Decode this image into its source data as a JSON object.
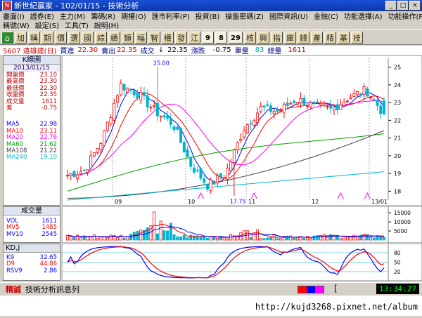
{
  "window": {
    "title": "新世紀贏家 - 102/01/15 - 技術分析"
  },
  "menu1": [
    "畫面(I)",
    "證券(E)",
    "主力(M)",
    "籌碼(R)",
    "期權(O)",
    "匯市利率(P)",
    "投資(B)",
    "操盤密碼(Z)",
    "國際資訊(U)",
    "金融(C)",
    "功能選擇(A)",
    "功能操作(F)"
  ],
  "menu2": [
    "稱號(W)",
    "設定(S)",
    "工具(T)",
    "說明(H)"
  ],
  "toolbar": [
    "加",
    "稱",
    "期",
    "價",
    "選",
    "國",
    "綜",
    "績",
    "類",
    "幅",
    "智",
    "權",
    "發",
    "江",
    "9",
    "8",
    "29",
    "核",
    "興",
    "指",
    "庫",
    "錢",
    "產",
    "精",
    "基",
    "技"
  ],
  "quote": {
    "stock": "5607 遠雄建(日)",
    "bid_label": "買進",
    "bid": "22.30",
    "ask_label": "賣出",
    "ask": "22.35",
    "trade_label": "成交",
    "trade_arrow": "↓",
    "trade": "22.35",
    "change_label": "漲跌",
    "change": "-0.75",
    "single_label": "單量",
    "single": "83",
    "total_label": "總量",
    "total": "1611"
  },
  "info": {
    "header": "K線圖",
    "date": "2013/01/15",
    "fields": [
      {
        "label": "開盤價",
        "value": "23.10",
        "color": "#c00000"
      },
      {
        "label": "最高價",
        "value": "23.30",
        "color": "#c00000"
      },
      {
        "label": "最低價",
        "value": "22.30",
        "color": "#c00000"
      },
      {
        "label": "收盤價",
        "value": "22.35",
        "color": "#c00000"
      },
      {
        "label": "成交量",
        "value": "1611",
        "color": "#c00000"
      },
      {
        "label": "差",
        "value": "-0.75",
        "color": "#c00000"
      }
    ],
    "ma": [
      {
        "label": "MA5",
        "value": "22.98",
        "color": "#0000ff"
      },
      {
        "label": "MA10",
        "value": "23.11",
        "color": "#ff0000"
      },
      {
        "label": "MA20",
        "value": "22.76",
        "color": "#ff00ff"
      },
      {
        "label": "MA60",
        "value": "21.62",
        "color": "#00a000"
      },
      {
        "label": "MA108",
        "value": "21.22",
        "color": "#404040"
      },
      {
        "label": "MA240",
        "value": "19.10",
        "color": "#00b4d0"
      }
    ]
  },
  "volume": {
    "header": "成交量",
    "fields": [
      {
        "label": "VOL",
        "value": "1611",
        "color": "#0000ff"
      },
      {
        "label": "MV5",
        "value": "1485",
        "color": "#ff0000"
      },
      {
        "label": "MV10",
        "value": "2545",
        "color": "#0000ff"
      }
    ]
  },
  "kd": {
    "header": "KD,J",
    "fields": [
      {
        "label": "K9",
        "value": "32.65",
        "color": "#0000ff"
      },
      {
        "label": "D9",
        "value": "44.86",
        "color": "#ff0000"
      },
      {
        "label": "RSV9",
        "value": "2.86",
        "color": "#0000ff"
      }
    ]
  },
  "status": {
    "brand": "精誠",
    "message": "技術分析訊息列",
    "bracket": "[",
    "time": "13:34:27"
  },
  "caption": {
    "url": "http://kujd3268.pixnet.net/album"
  },
  "chart_data": [
    {
      "type": "candlestick",
      "title": "5607 遠雄建(日) K線圖",
      "x_labels": [
        "09",
        "10",
        "11",
        "12",
        "13/01"
      ],
      "ylim": [
        17.5,
        25.5
      ],
      "yticks": [
        25,
        24,
        23,
        22,
        21,
        20,
        19,
        18
      ],
      "annotations": [
        {
          "text": "25.00",
          "kind": "high"
        },
        {
          "text": "17.75",
          "kind": "low"
        }
      ],
      "anchors_close": [
        18.9,
        19.2,
        21.0,
        24.0,
        23.5,
        22.5,
        21.8,
        19.5,
        18.3,
        19.0,
        21.5,
        22.7,
        22.5,
        23.2,
        22.8,
        22.6,
        23.3,
        23.7,
        22.35
      ],
      "last_bar": {
        "open": 23.1,
        "high": 23.3,
        "low": 22.3,
        "close": 22.35
      },
      "ma_last": {
        "MA5": 22.98,
        "MA10": 23.11,
        "MA20": 22.76,
        "MA60": 21.62,
        "MA108": 21.22,
        "MA240": 19.1
      },
      "colors": {
        "up": "#ff0000",
        "down": "#00b4d0",
        "MA5": "#0000ff",
        "MA10": "#ff0000",
        "MA20": "#ff00ff",
        "MA60": "#00a000",
        "MA108": "#404040",
        "MA240": "#00b4d0"
      }
    },
    {
      "type": "bar",
      "title": "成交量",
      "ylim": [
        0,
        17000
      ],
      "yticks": [
        15000,
        10000,
        5000
      ],
      "last_value": 1611,
      "mv5_last": 1485,
      "mv10_last": 2545
    },
    {
      "type": "line",
      "title": "KD,J",
      "ylim": [
        0,
        100
      ],
      "yticks": [
        80,
        50,
        20
      ],
      "series": [
        {
          "name": "K9",
          "last": 32.65
        },
        {
          "name": "D9",
          "last": 44.86
        },
        {
          "name": "RSV9",
          "last": 2.86
        }
      ]
    }
  ]
}
